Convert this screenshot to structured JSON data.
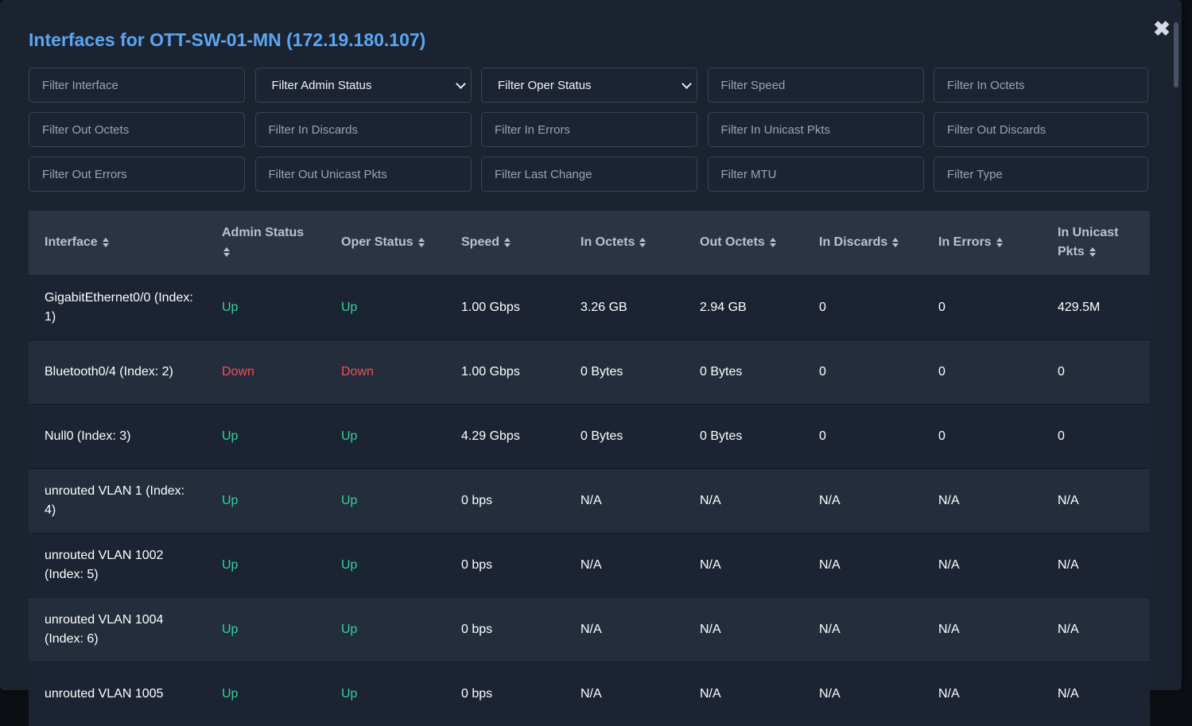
{
  "modal": {
    "title": "Interfaces for OTT-SW-01-MN (172.19.180.107)",
    "close_label": "✖"
  },
  "filters": {
    "interface": "Filter Interface",
    "admin_status": "Filter Admin Status",
    "oper_status": "Filter Oper Status",
    "speed": "Filter Speed",
    "in_octets": "Filter In Octets",
    "out_octets": "Filter Out Octets",
    "in_discards": "Filter In Discards",
    "in_errors": "Filter In Errors",
    "in_unicast": "Filter In Unicast Pkts",
    "out_discards": "Filter Out Discards",
    "out_errors": "Filter Out Errors",
    "out_unicast": "Filter Out Unicast Pkts",
    "last_change": "Filter Last Change",
    "mtu": "Filter MTU",
    "type": "Filter Type"
  },
  "table": {
    "headers": [
      "Interface",
      "Admin Status",
      "Oper Status",
      "Speed",
      "In Octets",
      "Out Octets",
      "In Discards",
      "In Errors",
      "In Unicast Pkts"
    ],
    "rows": [
      [
        "GigabitEthernet0/0 (Index: 1)",
        "Up",
        "Up",
        "1.00 Gbps",
        "3.26 GB",
        "2.94 GB",
        "0",
        "0",
        "429.5M"
      ],
      [
        "Bluetooth0/4 (Index: 2)",
        "Down",
        "Down",
        "1.00 Gbps",
        "0 Bytes",
        "0 Bytes",
        "0",
        "0",
        "0"
      ],
      [
        "Null0 (Index: 3)",
        "Up",
        "Up",
        "4.29 Gbps",
        "0 Bytes",
        "0 Bytes",
        "0",
        "0",
        "0"
      ],
      [
        "unrouted VLAN 1 (Index: 4)",
        "Up",
        "Up",
        "0 bps",
        "N/A",
        "N/A",
        "N/A",
        "N/A",
        "N/A"
      ],
      [
        "unrouted VLAN 1002 (Index: 5)",
        "Up",
        "Up",
        "0 bps",
        "N/A",
        "N/A",
        "N/A",
        "N/A",
        "N/A"
      ],
      [
        "unrouted VLAN 1004 (Index: 6)",
        "Up",
        "Up",
        "0 bps",
        "N/A",
        "N/A",
        "N/A",
        "N/A",
        "N/A"
      ],
      [
        "unrouted VLAN 1005",
        "Up",
        "Up",
        "0 bps",
        "N/A",
        "N/A",
        "N/A",
        "N/A",
        "N/A"
      ]
    ]
  },
  "colors": {
    "up": "#34d399",
    "down": "#f05252",
    "title": "#5aa6f3"
  }
}
